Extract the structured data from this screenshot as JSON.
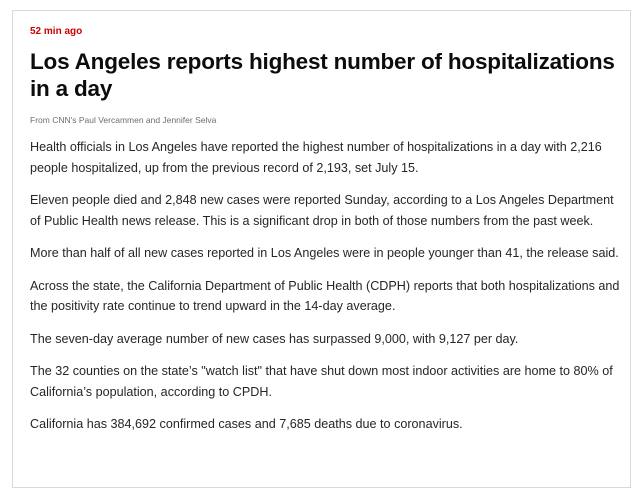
{
  "post": {
    "timestamp": "52 min ago",
    "headline": "Los Angeles reports highest number of hospitalizations in a day",
    "byline": "From CNN's Paul Vercammen and Jennifer Selva",
    "paragraphs": [
      "Health officials in Los Angeles have reported the highest number of hospitalizations in a day with 2,216 people hospitalized, up from the previous record of 2,193, set July 15.",
      "Eleven people died and 2,848 new cases were reported Sunday, according to a Los Angeles Department of Public Health news release. This is a significant drop in both of those numbers from the past week.",
      "More than half of all new cases reported in Los Angeles were in people younger than 41, the release said.",
      "Across the state, the California Department of Public Health (CDPH) reports that both hospitalizations and the positivity rate continue to trend upward in the 14-day average.",
      "The seven-day average number of new cases has surpassed 9,000, with 9,127 per day.",
      "The 32 counties on the state’s \"watch list\" that have shut down most indoor activities are home to 80% of California’s population, according to CPDH.",
      "California has 384,692 confirmed cases and 7,685 deaths due to coronavirus."
    ]
  },
  "colors": {
    "timestamp": "#cc0000",
    "headline": "#0c0c0c",
    "byline": "#6e6e6e",
    "body_text": "#262626",
    "border": "#d9d9d9"
  }
}
